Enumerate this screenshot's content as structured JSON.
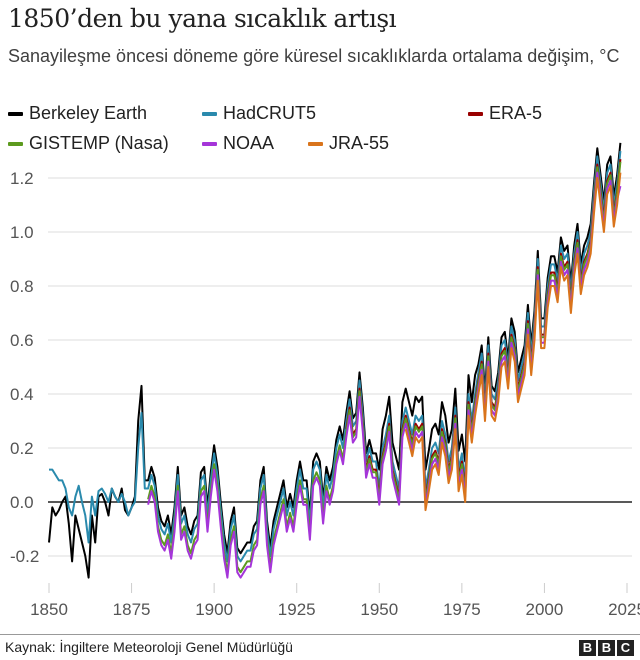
{
  "title": "1850’den bu yana sıcaklık artışı",
  "subtitle": "Sanayileşme öncesi döneme göre küresel sıcaklıklarda ortalama değişim, °C",
  "source": "Kaynak: İngiltere Meteoroloji Genel Müdürlüğü",
  "logo_letters": [
    "B",
    "B",
    "C"
  ],
  "chart_data": {
    "type": "line",
    "title": "1850’den bu yana sıcaklık artışı",
    "ylabel": "°C",
    "xlim": [
      1850,
      2025
    ],
    "ylim": [
      -0.25,
      1.3
    ],
    "x_ticks": [
      "1850",
      "1875",
      "1900",
      "1925",
      "1950",
      "1975",
      "2000",
      "2025"
    ],
    "x_tick_values": [
      1850,
      1875,
      1900,
      1925,
      1950,
      1975,
      2000,
      2025
    ],
    "y_ticks": [
      "1.2",
      "1.0",
      "0.8",
      "0.6",
      "0.4",
      "0.2",
      "0.0",
      "-0.2"
    ],
    "y_tick_values": [
      1.2,
      1.0,
      0.8,
      0.6,
      0.4,
      0.2,
      0.0,
      -0.2
    ],
    "grid": "horizontal",
    "legend_placement": "top",
    "series": [
      {
        "name": "Berkeley Earth",
        "color": "#000000",
        "start": 1850,
        "values": [
          -0.15,
          -0.02,
          -0.05,
          -0.03,
          0.0,
          0.02,
          -0.08,
          -0.22,
          -0.05,
          -0.1,
          -0.15,
          -0.2,
          -0.28,
          -0.05,
          -0.15,
          0.02,
          0.03,
          0.0,
          -0.05,
          0.05,
          0.02,
          0.0,
          0.05,
          -0.03,
          -0.05,
          -0.02,
          0.02,
          0.3,
          0.43,
          0.08,
          0.08,
          0.13,
          0.09,
          -0.02,
          -0.07,
          -0.09,
          -0.05,
          -0.12,
          -0.02,
          0.13,
          -0.05,
          -0.02,
          -0.09,
          -0.12,
          -0.07,
          -0.05,
          0.11,
          0.13,
          -0.02,
          0.11,
          0.21,
          0.13,
          0.0,
          -0.12,
          -0.19,
          -0.07,
          -0.02,
          -0.17,
          -0.19,
          -0.17,
          -0.15,
          -0.15,
          -0.09,
          -0.07,
          0.08,
          0.13,
          -0.07,
          -0.17,
          -0.07,
          -0.02,
          0.03,
          0.08,
          -0.02,
          0.03,
          -0.02,
          0.08,
          0.15,
          0.08,
          0.08,
          -0.05,
          0.15,
          0.18,
          0.15,
          0.01,
          0.13,
          0.08,
          0.13,
          0.23,
          0.28,
          0.23,
          0.33,
          0.41,
          0.31,
          0.33,
          0.48,
          0.35,
          0.18,
          0.23,
          0.18,
          0.18,
          0.12,
          0.27,
          0.32,
          0.39,
          0.22,
          0.17,
          0.12,
          0.37,
          0.42,
          0.37,
          0.32,
          0.39,
          0.37,
          0.39,
          0.12,
          0.19,
          0.27,
          0.29,
          0.25,
          0.37,
          0.32,
          0.22,
          0.27,
          0.42,
          0.19,
          0.25,
          0.15,
          0.47,
          0.37,
          0.47,
          0.51,
          0.58,
          0.41,
          0.61,
          0.43,
          0.41,
          0.48,
          0.61,
          0.63,
          0.53,
          0.68,
          0.63,
          0.48,
          0.53,
          0.58,
          0.73,
          0.58,
          0.71,
          0.93,
          0.68,
          0.68,
          0.83,
          0.91,
          0.91,
          0.85,
          0.98,
          0.93,
          0.95,
          0.81,
          0.95,
          1.03,
          0.88,
          0.95,
          0.98,
          1.03,
          1.18,
          1.31,
          1.21,
          1.11,
          1.25,
          1.28,
          1.13,
          1.21,
          1.33
        ]
      },
      {
        "name": "HadCRUT5",
        "color": "#2a8aad",
        "start": 1850,
        "values": [
          0.12,
          0.12,
          0.1,
          0.08,
          0.08,
          0.05,
          -0.02,
          -0.05,
          0.02,
          0.06,
          0.0,
          -0.05,
          -0.15,
          0.02,
          -0.05,
          0.04,
          0.05,
          0.03,
          0.0,
          0.05,
          0.02,
          0.0,
          0.03,
          0.0,
          -0.05,
          -0.02,
          0.0,
          0.2,
          0.33,
          0.05,
          0.05,
          0.1,
          0.06,
          -0.05,
          -0.1,
          -0.12,
          -0.08,
          -0.15,
          -0.05,
          0.1,
          -0.08,
          -0.05,
          -0.12,
          -0.15,
          -0.1,
          -0.08,
          0.08,
          0.1,
          -0.05,
          0.08,
          0.18,
          0.1,
          -0.03,
          -0.15,
          -0.22,
          -0.1,
          -0.05,
          -0.2,
          -0.22,
          -0.2,
          -0.18,
          -0.18,
          -0.12,
          -0.1,
          0.05,
          0.1,
          -0.1,
          -0.2,
          -0.1,
          -0.05,
          0.0,
          0.05,
          -0.05,
          0.0,
          -0.05,
          0.05,
          0.12,
          0.05,
          0.05,
          -0.08,
          0.12,
          0.15,
          0.12,
          -0.02,
          0.1,
          0.05,
          0.1,
          0.2,
          0.25,
          0.2,
          0.3,
          0.38,
          0.28,
          0.3,
          0.45,
          0.32,
          0.15,
          0.2,
          0.15,
          0.15,
          0.05,
          0.2,
          0.25,
          0.32,
          0.15,
          0.1,
          0.05,
          0.3,
          0.35,
          0.3,
          0.25,
          0.32,
          0.3,
          0.32,
          0.05,
          0.12,
          0.2,
          0.22,
          0.18,
          0.3,
          0.25,
          0.15,
          0.2,
          0.35,
          0.12,
          0.18,
          0.08,
          0.4,
          0.3,
          0.4,
          0.48,
          0.55,
          0.38,
          0.58,
          0.4,
          0.38,
          0.45,
          0.58,
          0.6,
          0.5,
          0.65,
          0.6,
          0.45,
          0.5,
          0.55,
          0.7,
          0.55,
          0.68,
          0.9,
          0.65,
          0.65,
          0.8,
          0.88,
          0.88,
          0.82,
          0.95,
          0.9,
          0.92,
          0.78,
          0.92,
          1.0,
          0.85,
          0.92,
          0.95,
          1.0,
          1.15,
          1.28,
          1.18,
          1.08,
          1.22,
          1.25,
          1.1,
          1.18,
          1.3
        ]
      },
      {
        "name": "ERA-5",
        "color": "#990000",
        "start": 1940,
        "values": [
          0.27,
          0.35,
          0.25,
          0.27,
          0.42,
          0.29,
          0.12,
          0.17,
          0.12,
          0.12,
          0.02,
          0.17,
          0.22,
          0.29,
          0.12,
          0.07,
          0.02,
          0.27,
          0.32,
          0.27,
          0.22,
          0.29,
          0.27,
          0.29,
          0.02,
          0.09,
          0.17,
          0.19,
          0.15,
          0.27,
          0.22,
          0.12,
          0.17,
          0.32,
          0.09,
          0.15,
          0.05,
          0.37,
          0.27,
          0.37,
          0.45,
          0.52,
          0.35,
          0.55,
          0.37,
          0.35,
          0.42,
          0.55,
          0.57,
          0.47,
          0.62,
          0.57,
          0.42,
          0.47,
          0.52,
          0.67,
          0.52,
          0.65,
          0.87,
          0.62,
          0.62,
          0.77,
          0.85,
          0.85,
          0.79,
          0.92,
          0.87,
          0.89,
          0.75,
          0.89,
          0.97,
          0.82,
          0.89,
          0.92,
          0.97,
          1.12,
          1.25,
          1.15,
          1.05,
          1.19,
          1.22,
          1.07,
          1.15,
          1.27
        ]
      },
      {
        "name": "GISTEMP (Nasa)",
        "color": "#5c9a1e",
        "start": 1880,
        "values": [
          0.01,
          0.06,
          0.02,
          -0.09,
          -0.14,
          -0.16,
          -0.12,
          -0.19,
          -0.09,
          0.06,
          -0.12,
          -0.09,
          -0.16,
          -0.19,
          -0.14,
          -0.12,
          0.04,
          0.06,
          -0.09,
          0.04,
          0.14,
          0.06,
          -0.07,
          -0.19,
          -0.26,
          -0.14,
          -0.09,
          -0.24,
          -0.26,
          -0.24,
          -0.22,
          -0.22,
          -0.16,
          -0.14,
          0.01,
          0.06,
          -0.14,
          -0.24,
          -0.14,
          -0.09,
          -0.04,
          0.01,
          -0.09,
          -0.04,
          -0.09,
          0.01,
          0.08,
          0.01,
          0.01,
          -0.12,
          0.08,
          0.11,
          0.08,
          -0.06,
          0.06,
          0.01,
          0.06,
          0.16,
          0.21,
          0.16,
          0.26,
          0.34,
          0.24,
          0.26,
          0.41,
          0.28,
          0.11,
          0.16,
          0.11,
          0.11,
          0.01,
          0.16,
          0.21,
          0.28,
          0.11,
          0.06,
          0.01,
          0.26,
          0.31,
          0.26,
          0.21,
          0.28,
          0.26,
          0.28,
          0.01,
          0.08,
          0.16,
          0.18,
          0.14,
          0.26,
          0.21,
          0.11,
          0.16,
          0.31,
          0.08,
          0.14,
          0.04,
          0.36,
          0.26,
          0.36,
          0.44,
          0.51,
          0.34,
          0.54,
          0.36,
          0.34,
          0.41,
          0.54,
          0.56,
          0.46,
          0.61,
          0.56,
          0.41,
          0.46,
          0.51,
          0.66,
          0.51,
          0.64,
          0.86,
          0.61,
          0.61,
          0.76,
          0.84,
          0.84,
          0.78,
          0.91,
          0.86,
          0.88,
          0.74,
          0.88,
          0.96,
          0.81,
          0.88,
          0.91,
          0.96,
          1.11,
          1.24,
          1.14,
          1.04,
          1.18,
          1.21,
          1.06,
          1.14,
          1.26
        ]
      },
      {
        "name": "NOAA",
        "color": "#a535d9",
        "start": 1880,
        "values": [
          -0.01,
          0.04,
          0.0,
          -0.11,
          -0.16,
          -0.18,
          -0.14,
          -0.21,
          -0.11,
          0.04,
          -0.14,
          -0.11,
          -0.18,
          -0.21,
          -0.16,
          -0.14,
          0.02,
          0.04,
          -0.11,
          0.02,
          0.12,
          0.04,
          -0.09,
          -0.21,
          -0.28,
          -0.16,
          -0.11,
          -0.26,
          -0.28,
          -0.26,
          -0.24,
          -0.24,
          -0.18,
          -0.16,
          -0.01,
          0.04,
          -0.16,
          -0.26,
          -0.16,
          -0.11,
          -0.06,
          -0.01,
          -0.11,
          -0.06,
          -0.11,
          -0.01,
          0.06,
          -0.01,
          -0.01,
          -0.14,
          0.06,
          0.09,
          0.06,
          -0.08,
          0.04,
          -0.01,
          0.04,
          0.14,
          0.19,
          0.14,
          0.24,
          0.32,
          0.22,
          0.24,
          0.39,
          0.26,
          0.09,
          0.14,
          0.09,
          0.09,
          -0.01,
          0.14,
          0.19,
          0.26,
          0.09,
          0.04,
          -0.01,
          0.24,
          0.29,
          0.24,
          0.19,
          0.26,
          0.24,
          0.26,
          -0.01,
          0.06,
          0.14,
          0.16,
          0.12,
          0.24,
          0.19,
          0.09,
          0.14,
          0.29,
          0.06,
          0.12,
          0.02,
          0.34,
          0.24,
          0.34,
          0.42,
          0.49,
          0.32,
          0.52,
          0.34,
          0.32,
          0.39,
          0.52,
          0.54,
          0.44,
          0.59,
          0.54,
          0.39,
          0.44,
          0.49,
          0.64,
          0.49,
          0.62,
          0.84,
          0.59,
          0.59,
          0.74,
          0.82,
          0.82,
          0.76,
          0.89,
          0.84,
          0.86,
          0.72,
          0.86,
          0.94,
          0.79,
          0.86,
          0.89,
          0.94,
          1.09,
          1.22,
          1.12,
          1.02,
          1.16,
          1.19,
          1.04,
          1.12,
          1.17
        ]
      },
      {
        "name": "JRA-55",
        "color": "#d9741c",
        "start": 1958,
        "values": [
          0.27,
          0.22,
          0.17,
          0.24,
          0.22,
          0.24,
          -0.03,
          0.04,
          0.12,
          0.14,
          0.1,
          0.22,
          0.17,
          0.07,
          0.12,
          0.27,
          0.04,
          0.1,
          0.0,
          0.32,
          0.22,
          0.32,
          0.4,
          0.47,
          0.3,
          0.5,
          0.32,
          0.3,
          0.37,
          0.5,
          0.52,
          0.42,
          0.57,
          0.52,
          0.37,
          0.42,
          0.47,
          0.62,
          0.47,
          0.6,
          0.82,
          0.57,
          0.57,
          0.72,
          0.8,
          0.8,
          0.74,
          0.87,
          0.82,
          0.84,
          0.7,
          0.84,
          0.92,
          0.77,
          0.84,
          0.87,
          0.92,
          1.07,
          1.2,
          1.1,
          1.0,
          1.14,
          1.17,
          1.02,
          1.1,
          1.22
        ]
      }
    ]
  }
}
